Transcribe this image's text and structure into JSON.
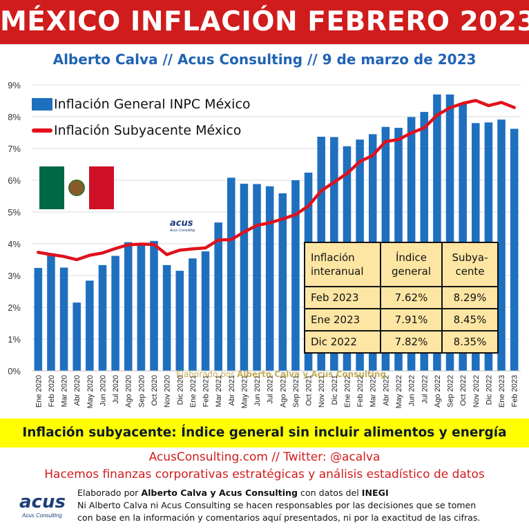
{
  "header": {
    "title": "MÉXICO INFLACIÓN FEBRERO 2023",
    "subtitle": "Alberto Calva // Acus Consulting // 9 de marzo de 2023"
  },
  "legend": {
    "bars_label": "Inflación General INPC México",
    "line_label": "Inflación Subyacente México"
  },
  "colors": {
    "bar": "#1f6fbf",
    "line": "#e0111b",
    "title_bg": "#d01c1c",
    "table_bg": "#fde6a3",
    "note_bg": "#ffff00"
  },
  "logo": {
    "name": "acus",
    "sub": "Acus Consulting"
  },
  "watermark": {
    "prefix": "Elaborado por ",
    "author": "Alberto Calva y Acus Consulting"
  },
  "table": {
    "headers": [
      "Inflación interanual",
      "Índice general",
      "Subya- cente"
    ],
    "rows": [
      [
        "Feb 2023",
        "7.62%",
        "8.29%"
      ],
      [
        "Ene 2023",
        "7.91%",
        "8.45%"
      ],
      [
        "Dic 2022",
        "7.82%",
        "8.35%"
      ]
    ]
  },
  "chart_data": {
    "type": "bar",
    "categories": [
      "Ene 2020",
      "Feb 2020",
      "Mar 2020",
      "Abr 2020",
      "May 2020",
      "Jun 2020",
      "Jul 2020",
      "Ago 2020",
      "Sep 2020",
      "Oct 2020",
      "Nov 2020",
      "Dic 2020",
      "Ene 2021",
      "Feb 2021",
      "Mar 2021",
      "Abr 2021",
      "May 2021",
      "Jun 2021",
      "Jul 2021",
      "Ago 2021",
      "Sep 2021",
      "Oct 2021",
      "Nov 2021",
      "Dic 2021",
      "Ene 2022",
      "Feb 2022",
      "Mar 2022",
      "Abr 2022",
      "May 2022",
      "Jun 2022",
      "Jul 2022",
      "Ago 2022",
      "Sep 2022",
      "Oct 2022",
      "Nov 2022",
      "Dic 2022",
      "Ene 2023",
      "Feb 2023"
    ],
    "series": [
      {
        "name": "Inflación General INPC México",
        "kind": "bar",
        "values": [
          3.24,
          3.7,
          3.25,
          2.15,
          2.84,
          3.33,
          3.62,
          4.05,
          4.01,
          4.09,
          3.33,
          3.15,
          3.54,
          3.76,
          4.67,
          6.08,
          5.89,
          5.88,
          5.81,
          5.59,
          6.0,
          6.24,
          7.37,
          7.36,
          7.07,
          7.28,
          7.45,
          7.68,
          7.65,
          7.99,
          8.15,
          8.7,
          8.7,
          8.41,
          7.8,
          7.82,
          7.91,
          7.62
        ]
      },
      {
        "name": "Inflación Subyacente México",
        "kind": "line",
        "values": [
          3.73,
          3.66,
          3.6,
          3.5,
          3.64,
          3.71,
          3.85,
          3.97,
          3.99,
          3.98,
          3.66,
          3.8,
          3.84,
          3.87,
          4.12,
          4.13,
          4.37,
          4.58,
          4.66,
          4.78,
          4.92,
          5.19,
          5.67,
          5.94,
          6.21,
          6.59,
          6.78,
          7.22,
          7.28,
          7.49,
          7.65,
          8.05,
          8.28,
          8.42,
          8.51,
          8.35,
          8.45,
          8.29
        ]
      }
    ],
    "ylim": [
      0,
      9
    ],
    "yticks": [
      "0%",
      "1%",
      "2%",
      "3%",
      "4%",
      "5%",
      "6%",
      "7%",
      "8%",
      "9%"
    ],
    "grid": true
  },
  "notes": {
    "definition": "Inflación subyacente: Índice general sin incluir alimentos y energía",
    "site": "AcusConsulting.com // Twitter: @acalva",
    "tagline": "Hacemos finanzas corporativas estratégicas y análisis estadístico de datos"
  },
  "footer": {
    "line1_prefix": "Elaborado por ",
    "line1_author": "Alberto Calva y Acus Consulting",
    "line1_mid": " con datos del ",
    "line1_source": "INEGI",
    "line2": "Ni Alberto Calva ni Acus Consulting se hacen responsables por las decisiones que se tomen",
    "line3": "con base en la información y comentarios aquí presentados, ni por la exactitud de las cifras."
  }
}
